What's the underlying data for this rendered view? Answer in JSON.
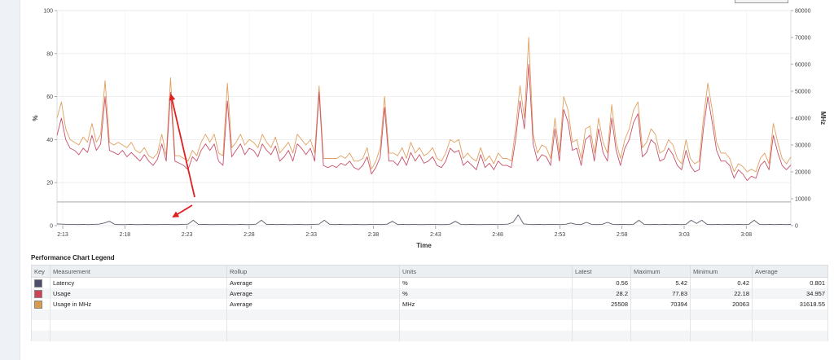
{
  "chart_data": {
    "type": "line",
    "xlabel": "Time",
    "ylabel_left": "%",
    "ylabel_right": "MHz",
    "ylim_left": [
      0,
      100
    ],
    "ylim_right": [
      0,
      80000
    ],
    "yticks_left": [
      "0",
      "20",
      "40",
      "60",
      "80",
      "100"
    ],
    "yticks_right": [
      "0",
      "10000",
      "20000",
      "30000",
      "40000",
      "50000",
      "60000",
      "70000",
      "80000"
    ],
    "xtick_labels": [
      "2:13",
      "2:18",
      "2:23",
      "2:28",
      "2:33",
      "2:38",
      "2:43",
      "2:48",
      "2:53",
      "2:58",
      "3:03",
      "3:08"
    ],
    "grid": true,
    "threshold_line_left": 11,
    "series": [
      {
        "name": "Latency",
        "axis": "left",
        "color": "#5a5a6a",
        "values": [
          0.8,
          0.7,
          0.6,
          0.6,
          0.5,
          0.6,
          0.5,
          0.6,
          0.7,
          1.2,
          2.0,
          0.6,
          0.5,
          0.5,
          0.6,
          0.5,
          0.5,
          0.6,
          0.5,
          0.5,
          0.6,
          0.6,
          0.5,
          0.5,
          0.6,
          0.7,
          2.5,
          0.5,
          0.6,
          0.5,
          0.5,
          0.6,
          0.6,
          0.5,
          0.5,
          0.6,
          0.5,
          0.5,
          0.7,
          2.5,
          0.5,
          0.6,
          0.5,
          0.6,
          0.5,
          0.5,
          0.6,
          0.5,
          0.5,
          0.6,
          0.7,
          2.5,
          0.6,
          0.5,
          0.6,
          0.5,
          0.5,
          0.6,
          0.5,
          0.5,
          0.6,
          0.6,
          0.5,
          0.7,
          2.0,
          0.5,
          0.6,
          0.5,
          0.6,
          0.5,
          0.5,
          0.6,
          0.6,
          0.5,
          0.5,
          0.7,
          2.0,
          0.6,
          0.5,
          0.6,
          0.5,
          0.5,
          0.6,
          0.6,
          0.5,
          0.6,
          0.7,
          1.5,
          5.0,
          0.8,
          0.6,
          0.5,
          0.6,
          0.5,
          0.6,
          0.6,
          0.5,
          0.6,
          1.2,
          0.6,
          0.5,
          1.5,
          0.6,
          0.5,
          0.6,
          1.5,
          0.6,
          0.5,
          0.6,
          0.5,
          0.6,
          2.5,
          0.6,
          0.5,
          0.6,
          0.5,
          0.6,
          0.5,
          0.6,
          0.5,
          0.6,
          2.5,
          1.0,
          2.5,
          0.6,
          0.5,
          0.6,
          0.5,
          0.6,
          0.5,
          0.6,
          0.5,
          0.6,
          2.5,
          0.6,
          0.5,
          0.6,
          0.5,
          0.6,
          0.5,
          0.56
        ]
      },
      {
        "name": "Usage",
        "axis": "left",
        "color": "#c8506a",
        "values": [
          42,
          50,
          40,
          36,
          35,
          33,
          36,
          34,
          42,
          35,
          38,
          60,
          35,
          34,
          33,
          35,
          32,
          34,
          32,
          30,
          33,
          30,
          28,
          31,
          38,
          30,
          62,
          30,
          29,
          28,
          26,
          32,
          30,
          35,
          38,
          35,
          38,
          30,
          28,
          58,
          32,
          35,
          38,
          33,
          36,
          35,
          32,
          38,
          35,
          33,
          37,
          30,
          32,
          35,
          30,
          38,
          36,
          33,
          36,
          30,
          62,
          28,
          27,
          28,
          27,
          29,
          28,
          30,
          27,
          26,
          28,
          32,
          24,
          27,
          32,
          55,
          30,
          30,
          28,
          32,
          28,
          34,
          30,
          33,
          29,
          30,
          32,
          28,
          27,
          30,
          36,
          34,
          35,
          28,
          30,
          28,
          26,
          33,
          27,
          29,
          26,
          30,
          28,
          28,
          27,
          40,
          58,
          45,
          75,
          38,
          30,
          33,
          32,
          28,
          45,
          30,
          54,
          48,
          35,
          36,
          28,
          40,
          42,
          30,
          45,
          34,
          30,
          50,
          35,
          28,
          36,
          40,
          48,
          52,
          32,
          34,
          40,
          38,
          30,
          31,
          36,
          33,
          28,
          26,
          35,
          28,
          25,
          26,
          45,
          60,
          48,
          35,
          30,
          30,
          28,
          22,
          26,
          24,
          21,
          23,
          22,
          28,
          30,
          26,
          42,
          34,
          28,
          26,
          28.2
        ]
      },
      {
        "name": "Usage in MHz",
        "axis": "right",
        "color": "#e0a060",
        "values": [
          40000,
          46000,
          36000,
          32000,
          31000,
          30000,
          33000,
          31000,
          38000,
          31000,
          34000,
          54000,
          31000,
          30000,
          31000,
          30000,
          29000,
          31000,
          28000,
          27000,
          29000,
          26000,
          25000,
          27000,
          34000,
          26000,
          55000,
          26000,
          26000,
          25000,
          24000,
          28000,
          26000,
          31000,
          34000,
          31000,
          34000,
          27000,
          26000,
          53000,
          29000,
          31000,
          34000,
          30000,
          32000,
          31000,
          29000,
          34000,
          31000,
          29000,
          33000,
          27000,
          29000,
          31000,
          27000,
          34000,
          32000,
          30000,
          32000,
          27000,
          52000,
          25000,
          25000,
          25000,
          25000,
          26000,
          25000,
          27000,
          24000,
          24000,
          25000,
          29000,
          21000,
          24000,
          29000,
          48000,
          27000,
          27000,
          26000,
          29000,
          25000,
          31000,
          27000,
          29000,
          26000,
          27000,
          29000,
          25000,
          24000,
          27000,
          32000,
          31000,
          32000,
          25000,
          27000,
          25000,
          24000,
          29000,
          24000,
          26000,
          23000,
          27000,
          25000,
          25000,
          24000,
          36000,
          52000,
          40000,
          70000,
          34000,
          27000,
          30000,
          29000,
          25000,
          40000,
          27000,
          48000,
          43000,
          31000,
          32000,
          25000,
          36000,
          37000,
          27000,
          40000,
          31000,
          27000,
          45000,
          31000,
          25000,
          32000,
          36000,
          43000,
          46000,
          29000,
          31000,
          36000,
          34000,
          27000,
          28000,
          32000,
          30000,
          25000,
          23000,
          32000,
          25000,
          23000,
          24000,
          40000,
          53000,
          43000,
          31000,
          27000,
          27000,
          25000,
          20063,
          23000,
          22000,
          20000,
          21000,
          20000,
          25000,
          27000,
          23000,
          38000,
          31000,
          25000,
          23000,
          25508
        ]
      }
    ]
  },
  "legend": {
    "title": "Performance Chart Legend",
    "headers": [
      "Key",
      "Measurement",
      "Rollup",
      "Units",
      "Latest",
      "Maximum",
      "Minimum",
      "Average"
    ],
    "rows": [
      {
        "color": "#4e4e6e",
        "measurement": "Latency",
        "rollup": "Average",
        "units": "%",
        "latest": "0.56",
        "maximum": "5.42",
        "minimum": "0.42",
        "average": "0.801"
      },
      {
        "color": "#cc4455",
        "measurement": "Usage",
        "rollup": "Average",
        "units": "%",
        "latest": "28.2",
        "maximum": "77.83",
        "minimum": "22.18",
        "average": "34.957"
      },
      {
        "color": "#d99a50",
        "measurement": "Usage in MHz",
        "rollup": "Average",
        "units": "MHz",
        "latest": "25508",
        "maximum": "70394",
        "minimum": "20063",
        "average": "31618.55"
      }
    ]
  }
}
